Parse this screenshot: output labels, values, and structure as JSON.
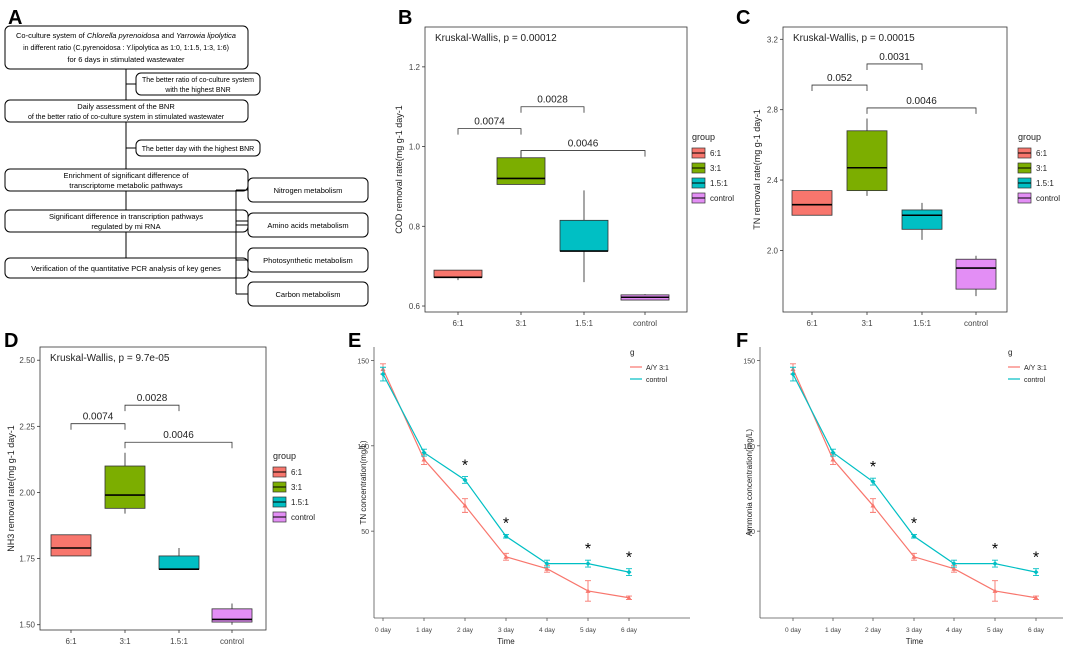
{
  "panel_letters": {
    "a": "A",
    "b": "B",
    "c": "C",
    "d": "D",
    "e": "E",
    "f": "F"
  },
  "flowchart": {
    "box1": {
      "line1": {
        "pre": "Co-culture system of ",
        "italic1": "Chlorella pyrenoidosa",
        "mid": " and ",
        "italic2": "Yarrowia lipolytica"
      },
      "line2": "in different ratio  (C.pyrenoidosa : Y.lipolytica as 1:0, 1:1.5, 1:3, 1:6)",
      "line3": "for 6 days in stimulated wastewater"
    },
    "side1": {
      "line1": "The better ratio of co-culture system",
      "line2": "with the highest BNR"
    },
    "box2": {
      "line1": "Daily assessment of the BNR",
      "line2": "of the better ratio of co-culture system in stimulated wastewater"
    },
    "side2": {
      "line1": "The better day with the highest BNR"
    },
    "box3": {
      "line1": "Enrichment of significant difference of",
      "line2": "transcriptome metabolic pathways"
    },
    "box4": {
      "line1": "Significant difference in transcription pathways",
      "line2": "regulated by mi RNA"
    },
    "box5": {
      "line1": "Verification of the quantitative PCR analysis of key genes"
    },
    "pathways": [
      "Nitrogen metabolism",
      "Amino acids metabolism",
      "Photosynthetic metabolism",
      "Carbon  metabolism"
    ]
  },
  "colors": {
    "c6_1": "#F8766D",
    "c3_1": "#7CAE00",
    "c1_5_1": "#00BFC4",
    "control": "#E38EF5",
    "line_AY": "#F8766D",
    "line_control": "#00BFC4"
  },
  "chart_data": [
    {
      "id": "B",
      "type": "boxplot",
      "title": "Kruskal-Wallis, p = 0.00012",
      "ylabel": "COD removal rate(mg g-1 day-1",
      "ylim": [
        0.585,
        1.3
      ],
      "yticks": [
        {
          "v": 0.6,
          "label": "0.6"
        },
        {
          "v": 0.8,
          "label": "0.8"
        },
        {
          "v": 1.0,
          "label": "1.0"
        },
        {
          "v": 1.2,
          "label": "1.2"
        }
      ],
      "categories": [
        "6:1",
        "3:1",
        "1.5:1",
        "control"
      ],
      "boxes": [
        {
          "lo": 0.665,
          "q1": 0.672,
          "med": 0.672,
          "q3": 0.69,
          "hi": 0.69
        },
        {
          "lo": 0.905,
          "q1": 0.905,
          "med": 0.92,
          "q3": 0.972,
          "hi": 0.99
        },
        {
          "lo": 0.66,
          "q1": 0.738,
          "med": 0.738,
          "q3": 0.815,
          "hi": 0.89
        },
        {
          "lo": 0.615,
          "q1": 0.615,
          "med": 0.622,
          "q3": 0.628,
          "hi": 0.63
        }
      ],
      "brackets": [
        {
          "a": 0,
          "b": 1,
          "y": 1.045,
          "label": "0.0074"
        },
        {
          "a": 1,
          "b": 2,
          "y": 1.1,
          "label": "0.0028"
        },
        {
          "a": 1,
          "b": 3,
          "y": 0.99,
          "label": "0.0046"
        }
      ],
      "legend_title": "group",
      "legend": [
        "6:1",
        "3:1",
        "1.5:1",
        "control"
      ]
    },
    {
      "id": "C",
      "type": "boxplot",
      "title": "Kruskal-Wallis, p = 0.00015",
      "ylabel": "TN removal rate(mg g-1 day-1",
      "ylim": [
        1.65,
        3.27
      ],
      "yticks": [
        {
          "v": 2.0,
          "label": "2.0"
        },
        {
          "v": 2.4,
          "label": "2.4"
        },
        {
          "v": 2.8,
          "label": "2.8"
        },
        {
          "v": 3.2,
          "label": "3.2"
        }
      ],
      "categories": [
        "6:1",
        "3:1",
        "1.5:1",
        "control"
      ],
      "boxes": [
        {
          "lo": 2.2,
          "q1": 2.2,
          "med": 2.26,
          "q3": 2.34,
          "hi": 2.34
        },
        {
          "lo": 2.31,
          "q1": 2.34,
          "med": 2.47,
          "q3": 2.68,
          "hi": 2.75
        },
        {
          "lo": 2.06,
          "q1": 2.12,
          "med": 2.2,
          "q3": 2.23,
          "hi": 2.27
        },
        {
          "lo": 1.74,
          "q1": 1.78,
          "med": 1.9,
          "q3": 1.95,
          "hi": 1.97
        }
      ],
      "brackets": [
        {
          "a": 0,
          "b": 1,
          "y": 2.94,
          "label": "0.052"
        },
        {
          "a": 1,
          "b": 2,
          "y": 3.06,
          "label": "0.0031"
        },
        {
          "a": 1,
          "b": 3,
          "y": 2.81,
          "label": "0.0046"
        }
      ],
      "legend_title": "group",
      "legend": [
        "6:1",
        "3:1",
        "1.5:1",
        "control"
      ]
    },
    {
      "id": "D",
      "type": "boxplot",
      "title": "Kruskal-Wallis, p = 9.7e-05",
      "ylabel": "NH3 removal rate(mg g-1 day-1",
      "ylim": [
        1.48,
        2.55
      ],
      "yticks": [
        {
          "v": 1.5,
          "label": "1.50"
        },
        {
          "v": 1.75,
          "label": "1.75"
        },
        {
          "v": 2.0,
          "label": "2.00"
        },
        {
          "v": 2.25,
          "label": "2.25"
        },
        {
          "v": 2.5,
          "label": "2.50"
        }
      ],
      "categories": [
        "6:1",
        "3:1",
        "1.5:1",
        "control"
      ],
      "boxes": [
        {
          "lo": 1.76,
          "q1": 1.76,
          "med": 1.79,
          "q3": 1.84,
          "hi": 1.84
        },
        {
          "lo": 1.92,
          "q1": 1.94,
          "med": 1.99,
          "q3": 2.1,
          "hi": 2.15
        },
        {
          "lo": 1.71,
          "q1": 1.71,
          "med": 1.71,
          "q3": 1.76,
          "hi": 1.79
        },
        {
          "lo": 1.5,
          "q1": 1.51,
          "med": 1.52,
          "q3": 1.56,
          "hi": 1.58
        }
      ],
      "brackets": [
        {
          "a": 0,
          "b": 1,
          "y": 2.26,
          "label": "0.0074"
        },
        {
          "a": 1,
          "b": 2,
          "y": 2.33,
          "label": "0.0028"
        },
        {
          "a": 1,
          "b": 3,
          "y": 2.19,
          "label": "0.0046"
        }
      ],
      "legend_title": "group",
      "legend": [
        "6:1",
        "3:1",
        "1.5:1",
        "control"
      ]
    },
    {
      "id": "E",
      "type": "line",
      "ylabel": "TN concentration(mg/L)",
      "xlabel": "Time",
      "ylim": [
        5,
        152
      ],
      "yticks": [
        {
          "v": 50,
          "label": "50"
        },
        {
          "v": 100,
          "label": "100"
        },
        {
          "v": 150,
          "label": "150"
        }
      ],
      "categories": [
        "0 day",
        "1 day",
        "2 day",
        "3 day",
        "4 day",
        "5 day",
        "6 day"
      ],
      "series": [
        {
          "name": "A/Y 3:1",
          "values": [
            145,
            92,
            65,
            35,
            28,
            15,
            11
          ],
          "err": [
            3,
            3,
            4,
            2,
            2,
            6,
            1
          ]
        },
        {
          "name": "control",
          "values": [
            142,
            96,
            80,
            47,
            31,
            31,
            26
          ],
          "err": [
            4,
            2,
            2,
            1,
            2,
            2,
            2
          ]
        }
      ],
      "significant": [
        false,
        false,
        true,
        true,
        false,
        true,
        true
      ],
      "sig_label": "*",
      "legend_title": "g"
    },
    {
      "id": "F",
      "type": "line",
      "ylabel": "Ammonia concentration(mg/L)",
      "xlabel": "Time",
      "ylim": [
        5,
        152
      ],
      "yticks": [
        {
          "v": 50,
          "label": "50"
        },
        {
          "v": 100,
          "label": "100"
        },
        {
          "v": 150,
          "label": "150"
        }
      ],
      "categories": [
        "0 day",
        "1 day",
        "2 day",
        "3 day",
        "4 day",
        "5 day",
        "6 day"
      ],
      "series": [
        {
          "name": "A/Y 3:1",
          "values": [
            145,
            92,
            65,
            35,
            28,
            15,
            11
          ],
          "err": [
            3,
            3,
            4,
            2,
            2,
            6,
            1
          ]
        },
        {
          "name": "control",
          "values": [
            142,
            96,
            79,
            47,
            31,
            31,
            26
          ],
          "err": [
            4,
            2,
            2,
            1,
            2,
            2,
            2
          ]
        }
      ],
      "significant": [
        false,
        false,
        true,
        true,
        false,
        true,
        true
      ],
      "sig_label": "*",
      "legend_title": "g"
    }
  ]
}
